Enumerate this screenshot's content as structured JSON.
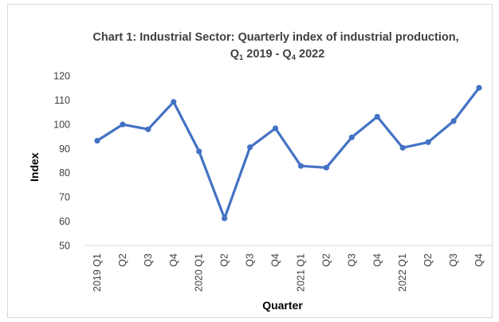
{
  "chart_data": {
    "type": "line",
    "title_line1": "Chart 1: Industrial Sector: Quarterly index of industrial production,",
    "title_line2_parts": [
      "Q",
      "1",
      " 2019 - Q",
      "4",
      " 2022"
    ],
    "xlabel": "Quarter",
    "ylabel": "Index",
    "ylim": [
      50,
      120
    ],
    "yticks": [
      50,
      60,
      70,
      80,
      90,
      100,
      110,
      120
    ],
    "grid": false,
    "legend": "none",
    "categories": [
      "2019 Q1",
      "Q2",
      "Q3",
      "Q4",
      "2020 Q1",
      "Q2",
      "Q3",
      "Q4",
      "2021 Q1",
      "Q2",
      "Q3",
      "Q4",
      "2022 Q1",
      "Q2",
      "Q3",
      "Q4"
    ],
    "series": [
      {
        "values": [
          93.2,
          99.9,
          97.9,
          109.2,
          88.8,
          61.2,
          90.5,
          98.3,
          82.8,
          82.1,
          94.6,
          103.1,
          90.3,
          92.6,
          101.3,
          115.0
        ]
      }
    ],
    "colors": {
      "line": "#4472c4",
      "axis": "#d9d9d9",
      "text": "#404040"
    }
  }
}
